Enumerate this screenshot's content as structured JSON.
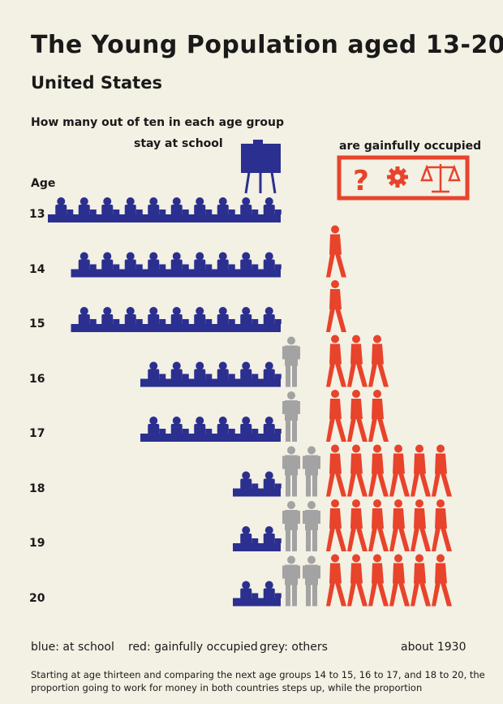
{
  "title": "The Young Population aged 13-20",
  "subtitle": "United States",
  "question": "How many out of ten in each age group",
  "school_label": "stay at school",
  "occupied_label": "are gainfully occupied",
  "age_heading": "Age",
  "legend": {
    "school": "blue: at school",
    "occupied": "red: gainfully occupied",
    "others": "grey: others",
    "date": "about 1930"
  },
  "footnote": "Starting at age thirteen and comparing the next age groups 14 to 15, 16 to 17, and 18 to 20, the proportion going to work for money in both countries steps up, while the proportion",
  "colors": {
    "school": "#2b2f8f",
    "occupied": "#e8432b",
    "others": "#a3a3a3",
    "background": "#f3f0e4"
  },
  "icons": {
    "school": "easel-board-icon",
    "occupied": [
      "question-mark-icon",
      "gear-icon",
      "scales-icon"
    ]
  },
  "chart_data": {
    "type": "pictogram",
    "unit": "one symbol = one out of ten",
    "categories": [
      "13",
      "14",
      "15",
      "16",
      "17",
      "18",
      "19",
      "20"
    ],
    "series": [
      {
        "name": "at school",
        "values": [
          10,
          9,
          9,
          6,
          6,
          2,
          2,
          2
        ]
      },
      {
        "name": "others",
        "values": [
          0,
          0,
          0,
          1,
          1,
          2,
          2,
          2
        ]
      },
      {
        "name": "gainfully occupied",
        "values": [
          0,
          1,
          1,
          3,
          3,
          6,
          6,
          6
        ]
      }
    ]
  }
}
